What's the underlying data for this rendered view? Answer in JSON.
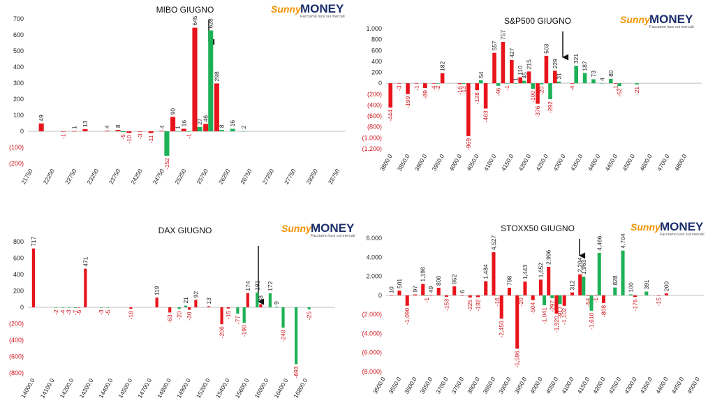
{
  "logo": {
    "brand": "Sunny",
    "brand2": "MONEY",
    "tagline": "Facciamo luce sui mercati"
  },
  "chart_data": [
    {
      "type": "bar",
      "title": "MIBO GIUGNO",
      "categories": [
        "21750",
        null,
        "22250",
        null,
        "22750",
        null,
        "23250",
        null,
        "23750",
        null,
        "24250",
        null,
        "24750",
        null,
        "25250",
        null,
        "25750",
        null,
        "26250",
        null,
        "26750",
        null,
        "27250",
        null,
        "27750",
        null,
        "28250",
        null,
        "28750"
      ],
      "series": [
        {
          "color": "#e8141b",
          "values": [
            null,
            49,
            null,
            -1,
            1,
            13,
            null,
            4,
            8,
            -10,
            -3,
            -11,
            4,
            90,
            16,
            645,
            46,
            298,
            null,
            null,
            null,
            null,
            null,
            null,
            null,
            null,
            null,
            null,
            null
          ]
        },
        {
          "color": "#1db157",
          "values": [
            null,
            null,
            null,
            null,
            null,
            null,
            null,
            null,
            -5,
            null,
            null,
            null,
            -152,
            1,
            -1,
            27,
            628,
            8,
            16,
            2,
            null,
            null,
            null,
            null,
            null,
            null,
            null,
            null,
            null
          ]
        }
      ],
      "ylim": [
        -200,
        700
      ],
      "yticks": [
        700,
        600,
        500,
        400,
        300,
        200,
        100,
        0,
        {
          "value": -100,
          "label": "(100)"
        },
        {
          "value": -200,
          "label": "(200)"
        }
      ]
    },
    {
      "type": "bar",
      "title": "S&P500 GIUGNO",
      "categories": [
        "3800.0",
        null,
        "3850.0",
        null,
        "3900.0",
        null,
        "3950.0",
        null,
        "4000.0",
        null,
        "4050.0",
        null,
        "4100.0",
        null,
        "4150.0",
        null,
        "4200.0",
        null,
        "4250.0",
        null,
        "4300.0",
        null,
        "4350.0",
        null,
        "4400.0",
        null,
        "4450.0",
        null,
        "4500.0",
        null,
        "4600.0",
        null,
        "4700.0",
        null,
        "4800.0"
      ],
      "series": [
        {
          "color": "#e8141b",
          "values": [
            -444,
            -3,
            -199,
            -1,
            -89,
            -4,
            182,
            null,
            -16,
            -969,
            -128,
            -463,
            557,
            757,
            427,
            110,
            215,
            -376,
            503,
            229,
            null,
            -4,
            null,
            null,
            null,
            null,
            -1,
            null,
            null,
            null,
            null,
            null,
            null,
            null,
            null
          ]
        },
        {
          "color": "#1db157",
          "values": [
            null,
            null,
            null,
            null,
            null,
            -2,
            null,
            null,
            -13,
            null,
            54,
            null,
            -46,
            -1,
            1,
            45,
            -100,
            -20,
            -292,
            31,
            null,
            321,
            187,
            73,
            4,
            80,
            -52,
            null,
            -21,
            null,
            null,
            null,
            null,
            null,
            null
          ]
        }
      ],
      "ylim": [
        -1200,
        1000
      ],
      "yticks": [
        {
          "value": 1000,
          "label": "1.000"
        },
        800,
        600,
        400,
        200,
        0,
        {
          "value": -200,
          "label": "(200)"
        },
        {
          "value": -400,
          "label": "(400)"
        },
        {
          "value": -600,
          "label": "(600)"
        },
        {
          "value": -800,
          "label": "(800)"
        },
        {
          "value": -1000,
          "label": "(1.000)"
        },
        {
          "value": -1200,
          "label": "(1.200)"
        }
      ]
    },
    {
      "type": "bar",
      "title": "DAX GIUGNO",
      "categories": [
        "14000.0",
        null,
        null,
        "14100.0",
        null,
        null,
        "14200.0",
        null,
        null,
        "14300.0",
        null,
        null,
        "14400.0",
        null,
        null,
        "14500.0",
        null,
        null,
        "14700.0",
        null,
        null,
        "14800.0",
        null,
        null,
        "14900.0",
        null,
        null,
        "15200.0",
        null,
        null,
        "15400.0",
        null,
        null,
        "15600.0",
        null,
        null,
        "16000.0",
        null,
        null,
        "16400.0",
        null,
        null,
        "16800.0",
        null,
        null
      ],
      "series": [
        {
          "color": "#e8141b",
          "values": [
            717,
            null,
            null,
            null,
            null,
            null,
            null,
            -5,
            471,
            null,
            null,
            null,
            null,
            null,
            null,
            -18,
            null,
            null,
            null,
            119,
            null,
            -63,
            null,
            null,
            -30,
            92,
            null,
            13,
            null,
            -206,
            -15,
            null,
            null,
            174,
            null,
            38,
            null,
            null,
            null,
            null,
            null,
            null,
            null,
            null,
            null
          ]
        },
        {
          "color": "#1db157",
          "values": [
            null,
            null,
            null,
            -2,
            -4,
            -3,
            -7,
            null,
            null,
            null,
            -3,
            -5,
            null,
            null,
            null,
            null,
            null,
            null,
            null,
            null,
            null,
            null,
            -20,
            21,
            null,
            null,
            null,
            null,
            null,
            null,
            null,
            -77,
            -190,
            null,
            181,
            null,
            172,
            9,
            -248,
            null,
            -693,
            null,
            -25,
            null,
            null
          ]
        }
      ],
      "ylim": [
        -800,
        800
      ],
      "yticks": [
        800,
        600,
        400,
        200,
        0,
        {
          "value": -200,
          "label": "(200)"
        },
        {
          "value": -400,
          "label": "(400)"
        },
        {
          "value": -600,
          "label": "(600)"
        },
        {
          "value": -800,
          "label": "(800)"
        }
      ]
    },
    {
      "type": "bar",
      "title": "STOXX50 GIUGNO",
      "categories": [
        "3500.0",
        null,
        "3550.0",
        null,
        "3600.0",
        null,
        "3650.0",
        null,
        "3700.0",
        null,
        "3750.0",
        null,
        "3800.0",
        null,
        "3850.0",
        null,
        "3900.0",
        null,
        "3950.0",
        null,
        "4000.0",
        null,
        "4050.0",
        null,
        "4100.0",
        null,
        "4150.0",
        null,
        "4200.0",
        null,
        "4250.0",
        null,
        "4300.0",
        null,
        "4350.0",
        null,
        "4400.0",
        null,
        "4450.0",
        null,
        "4500.0"
      ],
      "series": [
        {
          "color": "#e8141b",
          "values": [
            null,
            10,
            501,
            -1090,
            97,
            1198,
            49,
            800,
            -153,
            952,
            6,
            -225,
            -192,
            1484,
            4527,
            -2450,
            798,
            -5596,
            1443,
            -504,
            1652,
            2996,
            -1920,
            -1102,
            312,
            2204,
            -54,
            -1,
            -808,
            null,
            null,
            null,
            -176,
            null,
            null,
            -15,
            200,
            null,
            null,
            null,
            null
          ],
          "value_labels": [
            null,
            "10",
            "501",
            "-1,090",
            "97",
            "1,198",
            "49",
            "800",
            "-153",
            "952",
            "6",
            "-225",
            "-192",
            "1,484",
            "4,527",
            "-2,450",
            "798",
            "-5,596",
            "1,443",
            "-504",
            "1,652",
            "2,996",
            "-1,920",
            "-1,102",
            "312",
            "2,204",
            "-54",
            "-1",
            "-808",
            null,
            null,
            null,
            "-176",
            null,
            null,
            "-15",
            "200",
            null,
            null,
            null,
            null
          ]
        },
        {
          "color": "#1db157",
          "values": [
            null,
            null,
            null,
            null,
            null,
            -1,
            null,
            null,
            null,
            null,
            null,
            null,
            null,
            null,
            -16,
            null,
            null,
            -20,
            null,
            null,
            -1041,
            -297,
            -917,
            null,
            null,
            1963,
            -1610,
            4466,
            null,
            828,
            4704,
            100,
            null,
            391,
            null,
            null,
            null,
            null,
            null,
            null,
            null
          ],
          "value_labels": [
            null,
            null,
            null,
            null,
            null,
            "-1",
            null,
            null,
            null,
            null,
            null,
            null,
            null,
            null,
            "-16",
            null,
            null,
            "-20",
            null,
            null,
            "-1,041",
            "-297",
            "-917",
            null,
            null,
            "1,963",
            "-1,610",
            "4,466",
            null,
            "828",
            "4,704",
            "100",
            null,
            "391",
            null,
            null,
            null,
            null,
            null,
            null,
            null
          ]
        }
      ],
      "ylim": [
        -8000,
        6000
      ],
      "yticks": [
        {
          "value": 6000,
          "label": "6.000"
        },
        {
          "value": 4000,
          "label": "4.000"
        },
        {
          "value": 2000,
          "label": "2.000"
        },
        0,
        {
          "value": -2000,
          "label": "(2.000)"
        },
        {
          "value": -4000,
          "label": "(4.000)"
        },
        {
          "value": -6000,
          "label": "(6.000)"
        },
        {
          "value": -8000,
          "label": "(8.000)"
        }
      ]
    }
  ]
}
